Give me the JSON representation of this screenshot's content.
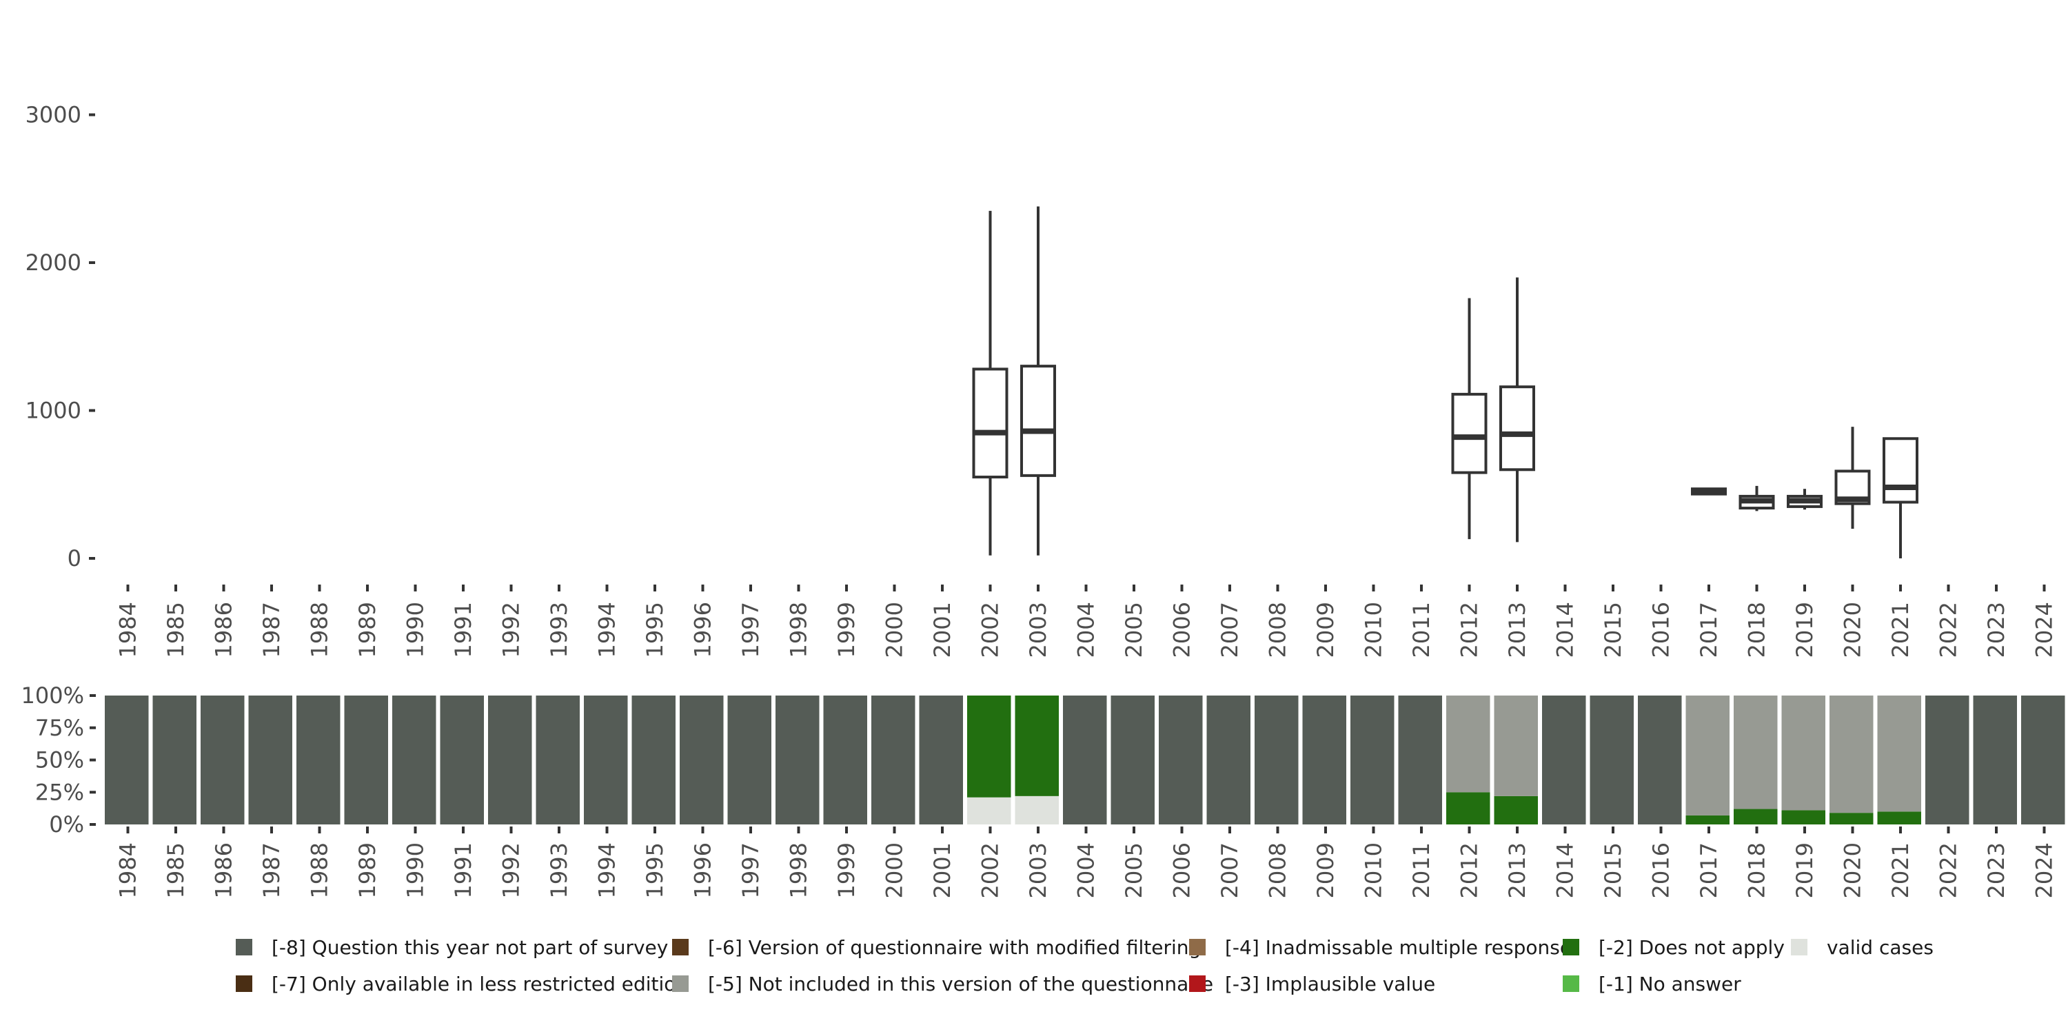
{
  "chart_data": [
    {
      "type": "boxplot",
      "title": "",
      "xlabel": "",
      "ylabel": "",
      "years": [
        "1984",
        "1985",
        "1986",
        "1987",
        "1988",
        "1989",
        "1990",
        "1991",
        "1992",
        "1993",
        "1994",
        "1995",
        "1996",
        "1997",
        "1998",
        "1999",
        "2000",
        "2001",
        "2002",
        "2003",
        "2004",
        "2005",
        "2006",
        "2007",
        "2008",
        "2009",
        "2010",
        "2011",
        "2012",
        "2013",
        "2014",
        "2015",
        "2016",
        "2017",
        "2018",
        "2019",
        "2020",
        "2021",
        "2022",
        "2023",
        "2024"
      ],
      "ylim": [
        -20,
        3300
      ],
      "yticks": [
        0,
        1000,
        2000,
        3000
      ],
      "ytick_labels": [
        "0",
        "1000",
        "2000",
        "3000"
      ],
      "boxes": [
        {
          "year": "2002",
          "min": 20,
          "q1": 550,
          "median": 850,
          "q3": 1280,
          "max": 2350
        },
        {
          "year": "2003",
          "min": 20,
          "q1": 560,
          "median": 860,
          "q3": 1300,
          "max": 2380
        },
        {
          "year": "2012",
          "min": 130,
          "q1": 580,
          "median": 820,
          "q3": 1110,
          "max": 1760
        },
        {
          "year": "2013",
          "min": 110,
          "q1": 600,
          "median": 840,
          "q3": 1160,
          "max": 1900
        },
        {
          "year": "2017",
          "min": 430,
          "q1": 435,
          "median": 450,
          "q3": 470,
          "max": 475
        },
        {
          "year": "2018",
          "min": 320,
          "q1": 340,
          "median": 390,
          "q3": 420,
          "max": 490
        },
        {
          "year": "2019",
          "min": 330,
          "q1": 350,
          "median": 390,
          "q3": 420,
          "max": 470
        },
        {
          "year": "2020",
          "min": 200,
          "q1": 370,
          "median": 400,
          "q3": 590,
          "max": 890
        },
        {
          "year": "2021",
          "min": 0,
          "q1": 380,
          "median": 480,
          "q3": 810,
          "max": 810
        }
      ]
    },
    {
      "type": "stacked_bar",
      "title": "",
      "yticks": [
        0,
        25,
        50,
        75,
        100
      ],
      "ytick_labels": [
        "0%",
        "25%",
        "50%",
        "75%",
        "100%"
      ],
      "ylim": [
        0,
        100
      ],
      "categories": [
        "1984",
        "1985",
        "1986",
        "1987",
        "1988",
        "1989",
        "1990",
        "1991",
        "1992",
        "1993",
        "1994",
        "1995",
        "1996",
        "1997",
        "1998",
        "1999",
        "2000",
        "2001",
        "2002",
        "2003",
        "2004",
        "2005",
        "2006",
        "2007",
        "2008",
        "2009",
        "2010",
        "2011",
        "2012",
        "2013",
        "2014",
        "2015",
        "2016",
        "2017",
        "2018",
        "2019",
        "2020",
        "2021",
        "2022",
        "2023",
        "2024"
      ],
      "series": [
        {
          "name": "valid cases",
          "color": "#dfe2dd",
          "values": [
            0,
            0,
            0,
            0,
            0,
            0,
            0,
            0,
            0,
            0,
            0,
            0,
            0,
            0,
            0,
            0,
            0,
            0,
            21,
            22,
            0,
            0,
            0,
            0,
            0,
            0,
            0,
            0,
            0,
            0,
            0,
            0,
            0,
            0,
            0,
            0,
            0,
            0,
            0,
            0,
            0
          ]
        },
        {
          "name": "[-2] Does not apply",
          "color": "#226f10",
          "values": [
            0,
            0,
            0,
            0,
            0,
            0,
            0,
            0,
            0,
            0,
            0,
            0,
            0,
            0,
            0,
            0,
            0,
            0,
            79,
            78,
            0,
            0,
            0,
            0,
            0,
            0,
            0,
            0,
            25,
            22,
            0,
            0,
            0,
            7,
            12,
            11,
            9,
            10,
            0,
            0,
            0
          ]
        },
        {
          "name": "[-5] Not included in this version of the questionnaire",
          "color": "#979a93",
          "values": [
            0,
            0,
            0,
            0,
            0,
            0,
            0,
            0,
            0,
            0,
            0,
            0,
            0,
            0,
            0,
            0,
            0,
            0,
            0,
            0,
            0,
            0,
            0,
            0,
            0,
            0,
            0,
            0,
            75,
            78,
            0,
            0,
            0,
            93,
            88,
            89,
            91,
            90,
            0,
            0,
            0
          ]
        },
        {
          "name": "[-8] Question this year not part of survey",
          "color": "#555c56",
          "values": [
            100,
            100,
            100,
            100,
            100,
            100,
            100,
            100,
            100,
            100,
            100,
            100,
            100,
            100,
            100,
            100,
            100,
            100,
            0,
            0,
            100,
            100,
            100,
            100,
            100,
            100,
            100,
            100,
            0,
            0,
            100,
            100,
            100,
            0,
            0,
            0,
            0,
            0,
            100,
            100,
            100
          ]
        }
      ]
    }
  ],
  "legend": {
    "items": [
      {
        "label": "[-8] Question this year not part of survey",
        "color": "#555c56"
      },
      {
        "label": "[-6] Version of questionnaire with modified filtering",
        "color": "#5a3a1c"
      },
      {
        "label": "[-4] Inadmissable multiple response",
        "color": "#8f6b48"
      },
      {
        "label": "[-2] Does not apply",
        "color": "#226f10"
      },
      {
        "label": "valid cases",
        "color": "#dfe2dd"
      },
      {
        "label": "[-7] Only available in less restricted edition",
        "color": "#4a2e14"
      },
      {
        "label": "[-5] Not included in this version of the questionnaire",
        "color": "#979a93"
      },
      {
        "label": "[-3] Implausible value",
        "color": "#b2171b"
      },
      {
        "label": "[-1] No answer",
        "color": "#56b947"
      }
    ]
  }
}
